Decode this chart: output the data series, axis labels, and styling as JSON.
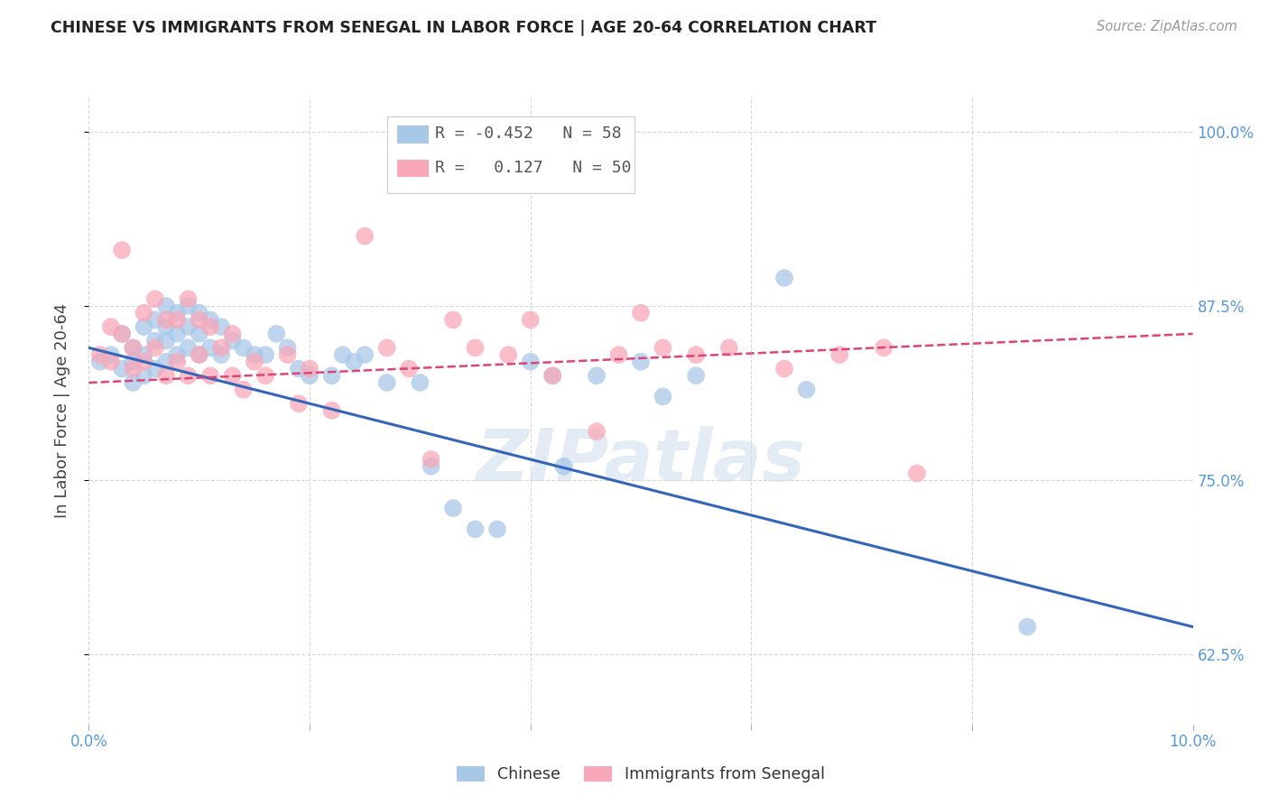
{
  "title": "CHINESE VS IMMIGRANTS FROM SENEGAL IN LABOR FORCE | AGE 20-64 CORRELATION CHART",
  "source": "Source: ZipAtlas.com",
  "ylabel": "In Labor Force | Age 20-64",
  "xlim": [
    0.0,
    0.1
  ],
  "ylim": [
    0.575,
    1.025
  ],
  "yticks": [
    0.625,
    0.75,
    0.875,
    1.0
  ],
  "ytick_labels": [
    "62.5%",
    "75.0%",
    "87.5%",
    "100.0%"
  ],
  "xticks": [
    0.0,
    0.02,
    0.04,
    0.06,
    0.08,
    0.1
  ],
  "xtick_labels": [
    "0.0%",
    "",
    "",
    "",
    "",
    "10.0%"
  ],
  "background_color": "#ffffff",
  "grid_color": "#d8d8d8",
  "chinese_color": "#a8c8e8",
  "senegal_color": "#f8a8b8",
  "chinese_line_color": "#3366bb",
  "senegal_line_color": "#dd4477",
  "axis_color": "#5599dd",
  "ylabel_color": "#444444",
  "watermark": "ZIPatlas",
  "legend": {
    "chinese_R": "-0.452",
    "chinese_N": "58",
    "senegal_R": "0.127",
    "senegal_N": "50"
  },
  "chinese_scatter_x": [
    0.001,
    0.002,
    0.003,
    0.003,
    0.004,
    0.004,
    0.004,
    0.005,
    0.005,
    0.005,
    0.006,
    0.006,
    0.006,
    0.007,
    0.007,
    0.007,
    0.007,
    0.008,
    0.008,
    0.008,
    0.009,
    0.009,
    0.009,
    0.01,
    0.01,
    0.01,
    0.011,
    0.011,
    0.012,
    0.012,
    0.013,
    0.014,
    0.015,
    0.016,
    0.017,
    0.018,
    0.019,
    0.02,
    0.022,
    0.023,
    0.024,
    0.025,
    0.027,
    0.03,
    0.031,
    0.033,
    0.035,
    0.037,
    0.04,
    0.042,
    0.043,
    0.046,
    0.05,
    0.052,
    0.055,
    0.063,
    0.065,
    0.085
  ],
  "chinese_scatter_y": [
    0.835,
    0.84,
    0.855,
    0.83,
    0.845,
    0.835,
    0.82,
    0.86,
    0.84,
    0.825,
    0.865,
    0.85,
    0.83,
    0.875,
    0.86,
    0.85,
    0.835,
    0.87,
    0.855,
    0.84,
    0.875,
    0.86,
    0.845,
    0.87,
    0.855,
    0.84,
    0.865,
    0.845,
    0.86,
    0.84,
    0.85,
    0.845,
    0.84,
    0.84,
    0.855,
    0.845,
    0.83,
    0.825,
    0.825,
    0.84,
    0.835,
    0.84,
    0.82,
    0.82,
    0.76,
    0.73,
    0.715,
    0.715,
    0.835,
    0.825,
    0.76,
    0.825,
    0.835,
    0.81,
    0.825,
    0.895,
    0.815,
    0.645
  ],
  "senegal_scatter_x": [
    0.001,
    0.002,
    0.002,
    0.003,
    0.003,
    0.004,
    0.004,
    0.005,
    0.005,
    0.006,
    0.006,
    0.007,
    0.007,
    0.008,
    0.008,
    0.009,
    0.009,
    0.01,
    0.01,
    0.011,
    0.011,
    0.012,
    0.013,
    0.013,
    0.014,
    0.015,
    0.016,
    0.018,
    0.019,
    0.02,
    0.022,
    0.025,
    0.027,
    0.029,
    0.031,
    0.033,
    0.038,
    0.04,
    0.042,
    0.046,
    0.05,
    0.052,
    0.055,
    0.058,
    0.063,
    0.068,
    0.072,
    0.075,
    0.048,
    0.035
  ],
  "senegal_scatter_y": [
    0.84,
    0.86,
    0.835,
    0.915,
    0.855,
    0.845,
    0.83,
    0.87,
    0.835,
    0.88,
    0.845,
    0.865,
    0.825,
    0.865,
    0.835,
    0.88,
    0.825,
    0.865,
    0.84,
    0.86,
    0.825,
    0.845,
    0.855,
    0.825,
    0.815,
    0.835,
    0.825,
    0.84,
    0.805,
    0.83,
    0.8,
    0.925,
    0.845,
    0.83,
    0.765,
    0.865,
    0.84,
    0.865,
    0.825,
    0.785,
    0.87,
    0.845,
    0.84,
    0.845,
    0.83,
    0.84,
    0.845,
    0.755,
    0.84,
    0.845
  ],
  "chinese_trend_x": [
    0.0,
    0.1
  ],
  "chinese_trend_y": [
    0.845,
    0.645
  ],
  "senegal_trend_x": [
    0.0,
    0.1
  ],
  "senegal_trend_y": [
    0.82,
    0.855
  ]
}
